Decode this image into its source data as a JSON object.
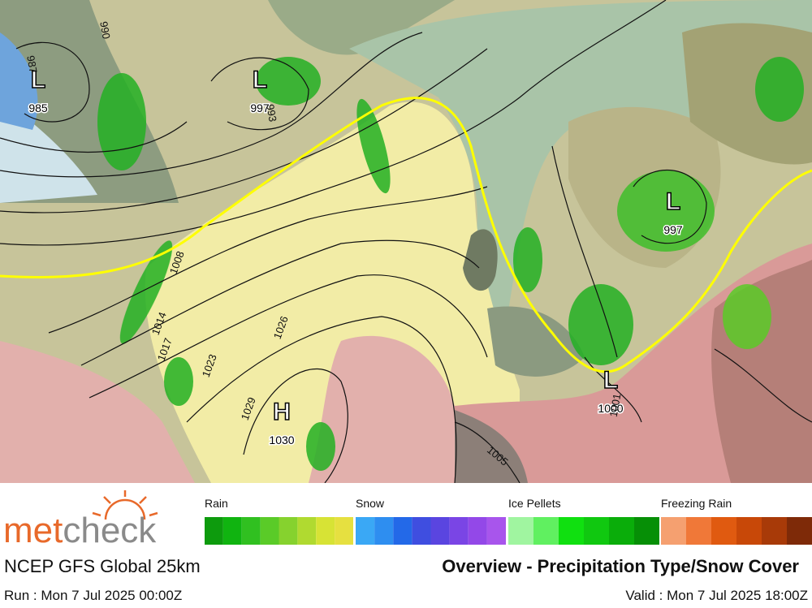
{
  "map": {
    "pressure_centers": [
      {
        "symbol": "L",
        "value": "985"
      },
      {
        "symbol": "L",
        "value": "997"
      },
      {
        "symbol": "L",
        "value": "997"
      },
      {
        "symbol": "L",
        "value": "1000"
      },
      {
        "symbol": "H",
        "value": "1030"
      }
    ],
    "isobar_labels": [
      "990",
      "987",
      "993",
      "1008",
      "1014",
      "1017",
      "1023",
      "1026",
      "1029",
      "1005",
      "1001"
    ]
  },
  "legend": [
    {
      "label": "Rain",
      "colors": [
        "#0d9b0d",
        "#10b410",
        "#30c020",
        "#5acb28",
        "#86d22e",
        "#b0da30",
        "#d7e335",
        "#e6e040"
      ]
    },
    {
      "label": "Snow",
      "colors": [
        "#3aa8f5",
        "#2e8ef0",
        "#2369e8",
        "#3f4ee0",
        "#5a45e0",
        "#7a45e5",
        "#9348e8",
        "#a855ec"
      ]
    },
    {
      "label": "Ice Pellets",
      "colors": [
        "#a0f5a0",
        "#60f060",
        "#10e010",
        "#10c810",
        "#0aad0a",
        "#068f06"
      ]
    },
    {
      "label": "Freezing Rain",
      "colors": [
        "#f5a070",
        "#f07838",
        "#e05a10",
        "#c84808",
        "#a83a08",
        "#7e2a08"
      ]
    }
  ],
  "footer": {
    "logo": {
      "part1": "met",
      "part2": "check"
    },
    "model": "NCEP GFS Global 25km",
    "title": "Overview - Precipitation Type/Snow Cover",
    "run": "Run : Mon 7 Jul 2025 00:00Z",
    "valid": "Valid : Mon 7 Jul 2025 18:00Z"
  }
}
